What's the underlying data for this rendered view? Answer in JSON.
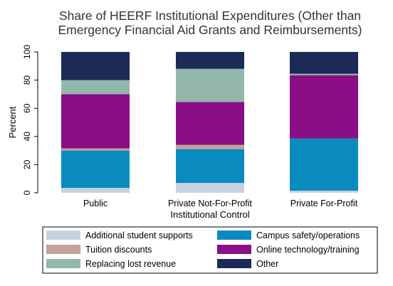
{
  "chart_data": {
    "type": "bar",
    "stacked": true,
    "horizontal": false,
    "title": "Share of HEERF Institutional Expenditures (Other than Emergency Financial Aid Grants and Reimbursements)",
    "title_lines": [
      "Share of HEERF Institutional Expenditures (Other than",
      "Emergency Financial Aid Grants and Reimbursements)"
    ],
    "xlabel": "Institutional Control",
    "ylabel": "Percent",
    "ylim": [
      0,
      100
    ],
    "yticks": [
      "0",
      "20",
      "40",
      "60",
      "80",
      "100"
    ],
    "grid": false,
    "legend_position": "bottom",
    "categories": [
      "Public",
      "Private Not-For-Profit",
      "Private For-Profit"
    ],
    "series": [
      {
        "name": "Additional student supports",
        "color": "#c6d3df",
        "values": [
          3.5,
          7,
          1.5
        ]
      },
      {
        "name": "Campus safety/operations",
        "color": "#0a8bc0",
        "values": [
          26.5,
          24,
          37
        ]
      },
      {
        "name": "Tuition discounts",
        "color": "#c3a298",
        "values": [
          1.5,
          3,
          0
        ]
      },
      {
        "name": "Online technology/training",
        "color": "#8a0e86",
        "values": [
          38.5,
          30.5,
          45
        ]
      },
      {
        "name": "Replacing lost revenue",
        "color": "#93b6ad",
        "values": [
          10,
          23.5,
          1
        ]
      },
      {
        "name": "Other",
        "color": "#1b2a56",
        "values": [
          20,
          12,
          15.5
        ]
      }
    ],
    "legend_order": [
      "Additional student supports",
      "Campus safety/operations",
      "Tuition discounts",
      "Online technology/training",
      "Replacing lost revenue",
      "Other"
    ]
  }
}
